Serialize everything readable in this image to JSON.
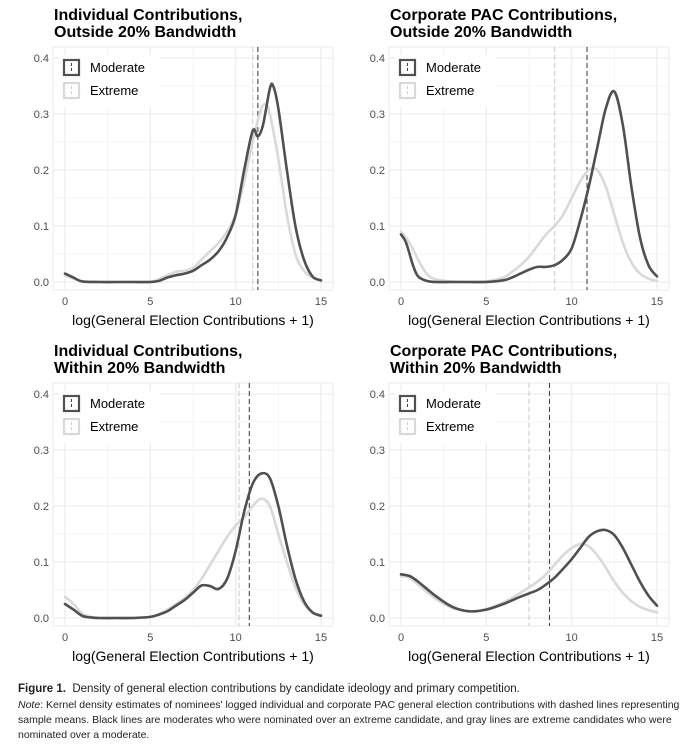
{
  "figure": {
    "label": "Figure 1.",
    "caption": "Density of general election contributions by candidate ideology and primary competition.",
    "note_label": "Note",
    "note": ": Kernel density estimates of nominees' logged individual and corporate PAC general election contributions with dashed lines representing sample means. Black lines are moderates who were nominated over an extreme candidate, and gray lines are extreme candidates who were nominated over a moderate."
  },
  "colors": {
    "moderate": "#505050",
    "extreme": "#d9d9d9",
    "grid": "#ebebeb",
    "axis_text": "#4d4d4d"
  },
  "chart_data": [
    {
      "type": "line",
      "title_line1": "Individual Contributions,",
      "title_line2": "Outside 20% Bandwidth",
      "xlabel": "log(General Election Contributions + 1)",
      "ylabel": "",
      "xlim": [
        0,
        15
      ],
      "ylim": [
        0,
        0.4
      ],
      "xticks": [
        0,
        5,
        10,
        15
      ],
      "yticks": [
        0.0,
        0.1,
        0.2,
        0.3,
        0.4
      ],
      "xtick_labels": [
        "0",
        "5",
        "10",
        "15"
      ],
      "ytick_labels": [
        "0.0",
        "0.1",
        "0.2",
        "0.3",
        "0.4"
      ],
      "legend": [
        "Moderate",
        "Extreme"
      ],
      "legend_position": "top-left",
      "grid": true,
      "series": [
        {
          "name": "Moderate",
          "role": "moderate",
          "mean": 11.3,
          "x": [
            0,
            0.5,
            1,
            2,
            3,
            4,
            5,
            5.5,
            6,
            6.5,
            7,
            7.5,
            8,
            8.5,
            9,
            9.5,
            10,
            10.5,
            11,
            11.3,
            11.6,
            12,
            12.2,
            12.5,
            13,
            13.5,
            14,
            14.5,
            15
          ],
          "y": [
            0.015,
            0.008,
            0.001,
            0.0,
            0.0,
            0.0,
            0.0,
            0.002,
            0.008,
            0.012,
            0.015,
            0.02,
            0.03,
            0.04,
            0.055,
            0.08,
            0.12,
            0.2,
            0.27,
            0.26,
            0.28,
            0.345,
            0.35,
            0.31,
            0.2,
            0.1,
            0.04,
            0.01,
            0.003
          ]
        },
        {
          "name": "Extreme",
          "role": "extreme",
          "mean": 11.0,
          "x": [
            0,
            0.5,
            1,
            2,
            3,
            4,
            5,
            5.5,
            6,
            6.5,
            7,
            7.5,
            8,
            8.5,
            9,
            9.5,
            10,
            10.5,
            11,
            11.5,
            11.8,
            12,
            12.5,
            13,
            13.5,
            14,
            14.5,
            15
          ],
          "y": [
            0.012,
            0.006,
            0.001,
            0.0,
            0.0,
            0.0,
            0.0,
            0.005,
            0.012,
            0.018,
            0.02,
            0.025,
            0.04,
            0.055,
            0.07,
            0.09,
            0.12,
            0.18,
            0.25,
            0.31,
            0.315,
            0.3,
            0.22,
            0.12,
            0.05,
            0.02,
            0.008,
            0.002
          ]
        }
      ]
    },
    {
      "type": "line",
      "title_line1": "Corporate PAC Contributions,",
      "title_line2": "Outside 20% Bandwidth",
      "xlabel": "log(General Election Contributions + 1)",
      "ylabel": "",
      "xlim": [
        0,
        15
      ],
      "ylim": [
        0,
        0.4
      ],
      "xticks": [
        0,
        5,
        10,
        15
      ],
      "yticks": [
        0.0,
        0.1,
        0.2,
        0.3,
        0.4
      ],
      "xtick_labels": [
        "0",
        "5",
        "10",
        "15"
      ],
      "ytick_labels": [
        "0.0",
        "0.1",
        "0.2",
        "0.3",
        "0.4"
      ],
      "legend": [
        "Moderate",
        "Extreme"
      ],
      "legend_position": "top-left",
      "grid": true,
      "series": [
        {
          "name": "Moderate",
          "role": "moderate",
          "mean": 10.9,
          "x": [
            0,
            0.3,
            0.7,
            1,
            1.5,
            2,
            3,
            4,
            5,
            6,
            6.5,
            7,
            7.5,
            8,
            8.5,
            9,
            9.5,
            10,
            10.5,
            11,
            11.5,
            12,
            12.5,
            13,
            13.5,
            14,
            14.5,
            15
          ],
          "y": [
            0.085,
            0.07,
            0.03,
            0.01,
            0.002,
            0.0,
            0.0,
            0.0,
            0.0,
            0.003,
            0.008,
            0.015,
            0.022,
            0.027,
            0.027,
            0.03,
            0.04,
            0.06,
            0.11,
            0.17,
            0.24,
            0.31,
            0.34,
            0.28,
            0.17,
            0.08,
            0.03,
            0.01
          ]
        },
        {
          "name": "Extreme",
          "role": "extreme",
          "mean": 9.0,
          "x": [
            0,
            0.5,
            1,
            1.5,
            2,
            3,
            4,
            5,
            6,
            6.5,
            7,
            7.5,
            8,
            8.5,
            9,
            9.5,
            10,
            10.5,
            11,
            11.5,
            12,
            12.5,
            13,
            13.5,
            14,
            14.5,
            15
          ],
          "y": [
            0.09,
            0.07,
            0.04,
            0.015,
            0.005,
            0.001,
            0.0,
            0.001,
            0.008,
            0.018,
            0.03,
            0.045,
            0.065,
            0.085,
            0.1,
            0.12,
            0.15,
            0.18,
            0.2,
            0.2,
            0.17,
            0.12,
            0.07,
            0.035,
            0.015,
            0.006,
            0.002
          ]
        }
      ]
    },
    {
      "type": "line",
      "title_line1": "Individual Contributions,",
      "title_line2": "Within 20% Bandwidth",
      "xlabel": "log(General Election Contributions + 1)",
      "ylabel": "",
      "xlim": [
        0,
        15
      ],
      "ylim": [
        0,
        0.4
      ],
      "xticks": [
        0,
        5,
        10,
        15
      ],
      "yticks": [
        0.0,
        0.1,
        0.2,
        0.3,
        0.4
      ],
      "xtick_labels": [
        "0",
        "5",
        "10",
        "15"
      ],
      "ytick_labels": [
        "0.0",
        "0.1",
        "0.2",
        "0.3",
        "0.4"
      ],
      "legend": [
        "Moderate",
        "Extreme"
      ],
      "legend_position": "top-left",
      "grid": true,
      "series": [
        {
          "name": "Moderate",
          "role": "moderate",
          "mean": 10.8,
          "x": [
            0,
            0.5,
            1,
            1.5,
            2,
            3,
            4,
            5,
            5.5,
            6,
            6.5,
            7,
            7.5,
            8,
            8.5,
            9,
            9.5,
            10,
            10.5,
            11,
            11.5,
            12,
            12.5,
            13,
            13.5,
            14,
            14.5,
            15
          ],
          "y": [
            0.025,
            0.015,
            0.004,
            0.001,
            0.0,
            0.0,
            0.0,
            0.002,
            0.006,
            0.012,
            0.022,
            0.032,
            0.045,
            0.058,
            0.057,
            0.052,
            0.07,
            0.12,
            0.19,
            0.24,
            0.258,
            0.25,
            0.2,
            0.13,
            0.07,
            0.03,
            0.01,
            0.004
          ]
        },
        {
          "name": "Extreme",
          "role": "extreme",
          "mean": 10.2,
          "x": [
            0,
            0.5,
            1,
            1.5,
            2,
            3,
            4,
            5,
            5.5,
            6,
            6.5,
            7,
            7.5,
            8,
            8.5,
            9,
            9.5,
            10,
            10.5,
            11,
            11.5,
            12,
            12.5,
            13,
            13.5,
            14,
            14.5,
            15
          ],
          "y": [
            0.038,
            0.025,
            0.008,
            0.002,
            0.0,
            0.0,
            0.0,
            0.002,
            0.007,
            0.015,
            0.025,
            0.035,
            0.05,
            0.07,
            0.095,
            0.12,
            0.145,
            0.165,
            0.18,
            0.2,
            0.213,
            0.2,
            0.15,
            0.1,
            0.055,
            0.025,
            0.01,
            0.005
          ]
        }
      ]
    },
    {
      "type": "line",
      "title_line1": "Corporate PAC Contributions,",
      "title_line2": "Within 20% Bandwidth",
      "xlabel": "log(General Election Contributions + 1)",
      "ylabel": "",
      "xlim": [
        0,
        15
      ],
      "ylim": [
        0,
        0.4
      ],
      "xticks": [
        0,
        5,
        10,
        15
      ],
      "yticks": [
        0.0,
        0.1,
        0.2,
        0.3,
        0.4
      ],
      "xtick_labels": [
        "0",
        "5",
        "10",
        "15"
      ],
      "ytick_labels": [
        "0.0",
        "0.1",
        "0.2",
        "0.3",
        "0.4"
      ],
      "legend": [
        "Moderate",
        "Extreme"
      ],
      "legend_position": "top-left",
      "grid": true,
      "series": [
        {
          "name": "Moderate",
          "role": "moderate",
          "mean": 8.7,
          "x": [
            0,
            0.5,
            1,
            2,
            3,
            4,
            5,
            6,
            7,
            8,
            8.5,
            9,
            9.5,
            10,
            10.5,
            11,
            11.5,
            12,
            12.5,
            13,
            13.5,
            14,
            14.5,
            15
          ],
          "y": [
            0.078,
            0.075,
            0.065,
            0.04,
            0.02,
            0.012,
            0.015,
            0.025,
            0.038,
            0.05,
            0.06,
            0.072,
            0.088,
            0.105,
            0.125,
            0.145,
            0.155,
            0.157,
            0.148,
            0.125,
            0.095,
            0.065,
            0.04,
            0.022
          ]
        },
        {
          "name": "Extreme",
          "role": "extreme",
          "mean": 7.5,
          "x": [
            0,
            0.5,
            1,
            2,
            3,
            4,
            5,
            6,
            7,
            8,
            8.5,
            9,
            9.5,
            10,
            10.5,
            11,
            11.5,
            12,
            12.5,
            13,
            13.5,
            14,
            14.5,
            15
          ],
          "y": [
            0.075,
            0.072,
            0.06,
            0.035,
            0.018,
            0.012,
            0.016,
            0.028,
            0.045,
            0.065,
            0.078,
            0.095,
            0.112,
            0.125,
            0.132,
            0.128,
            0.112,
            0.09,
            0.065,
            0.045,
            0.03,
            0.02,
            0.014,
            0.01
          ]
        }
      ]
    }
  ]
}
